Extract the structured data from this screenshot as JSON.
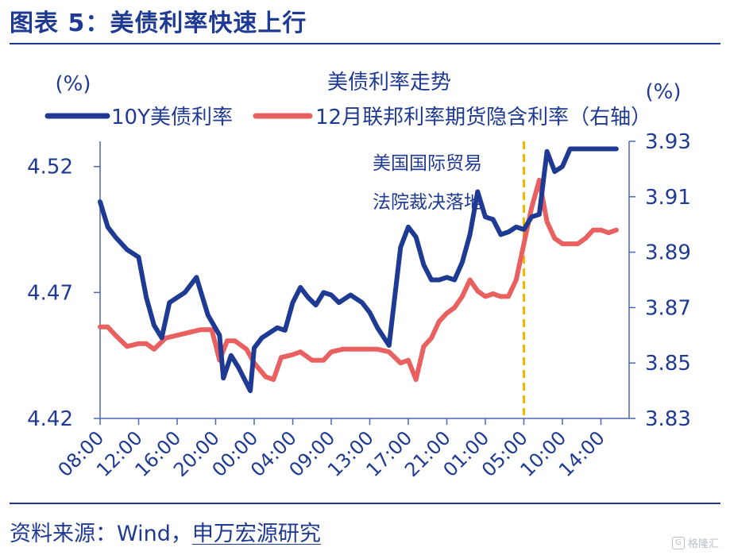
{
  "header": {
    "title": "图表 5：美债利率快速上行"
  },
  "footer": {
    "source_prefix": "资料来源：Wind，",
    "source_org": "申万宏源研究"
  },
  "watermark": {
    "text": "格隆汇",
    "icon": "g-logo-icon"
  },
  "chart_data": {
    "type": "line",
    "title": "美债利率走势",
    "left_unit": "(%)",
    "right_unit": "(%)",
    "annotation": [
      "美国国际贸易",
      "法院裁决落地"
    ],
    "annotation_x": "05:00",
    "categories": [
      "08:00",
      "12:00",
      "16:00",
      "20:00",
      "00:00",
      "04:00",
      "09:00",
      "13:00",
      "17:00",
      "21:00",
      "01:00",
      "05:00",
      "10:00",
      "14:00"
    ],
    "y_left": {
      "min": 4.42,
      "max": 4.53,
      "ticks": [
        "4.52",
        "4.47",
        "4.42"
      ]
    },
    "y_right": {
      "min": 3.83,
      "max": 3.93,
      "ticks": [
        "3.93",
        "3.91",
        "3.89",
        "3.87",
        "3.85",
        "3.83"
      ]
    },
    "series": [
      {
        "name": "10Y美债利率",
        "axis": "left",
        "color": "#1f3a93",
        "x": [
          0.0,
          0.2,
          0.4,
          0.7,
          1.0,
          1.2,
          1.4,
          1.6,
          1.8,
          2.0,
          2.2,
          2.5,
          2.8,
          3.1,
          3.2,
          3.4,
          3.6,
          3.9,
          4.0,
          4.2,
          4.4,
          4.6,
          4.8,
          5.0,
          5.2,
          5.4,
          5.6,
          5.8,
          6.0,
          6.2,
          6.5,
          6.8,
          7.0,
          7.2,
          7.5,
          7.8,
          8.0,
          8.2,
          8.4,
          8.6,
          8.8,
          9.0,
          9.2,
          9.4,
          9.6,
          9.8,
          10.0,
          10.2,
          10.4,
          10.6,
          10.8,
          11.0,
          11.2,
          11.4,
          11.6,
          11.8,
          12.0,
          12.2,
          12.4,
          12.6,
          12.8,
          13.0,
          13.2,
          13.4
        ],
        "values": [
          4.506,
          4.496,
          4.492,
          4.487,
          4.484,
          4.468,
          4.457,
          4.452,
          4.466,
          4.468,
          4.47,
          4.476,
          4.461,
          4.453,
          4.436,
          4.445,
          4.44,
          4.431,
          4.448,
          4.452,
          4.454,
          4.456,
          4.455,
          4.466,
          4.472,
          4.468,
          4.465,
          4.47,
          4.469,
          4.466,
          4.469,
          4.466,
          4.462,
          4.456,
          4.449,
          4.488,
          4.496,
          4.492,
          4.481,
          4.475,
          4.475,
          4.476,
          4.475,
          4.482,
          4.493,
          4.51,
          4.5,
          4.499,
          4.493,
          4.494,
          4.496,
          4.495,
          4.5,
          4.501,
          4.526,
          4.518,
          4.52,
          4.527,
          4.527,
          4.527,
          4.527,
          4.527,
          4.527,
          4.527
        ]
      },
      {
        "name": "12月联邦利率期货隐含利率（右轴）",
        "axis": "right",
        "color": "#e8605f",
        "x": [
          0.0,
          0.2,
          0.4,
          0.7,
          1.0,
          1.2,
          1.4,
          1.7,
          2.0,
          2.3,
          2.6,
          2.9,
          3.1,
          3.3,
          3.5,
          3.8,
          4.0,
          4.3,
          4.5,
          4.7,
          5.0,
          5.2,
          5.5,
          5.8,
          6.0,
          6.3,
          6.6,
          6.9,
          7.2,
          7.5,
          7.8,
          8.0,
          8.2,
          8.4,
          8.6,
          8.8,
          9.0,
          9.2,
          9.4,
          9.6,
          9.8,
          10.0,
          10.2,
          10.4,
          10.6,
          10.8,
          11.0,
          11.2,
          11.4,
          11.6,
          11.8,
          12.0,
          12.2,
          12.4,
          12.6,
          12.8,
          13.0,
          13.2,
          13.4
        ],
        "values": [
          3.863,
          3.863,
          3.86,
          3.856,
          3.857,
          3.857,
          3.855,
          3.859,
          3.86,
          3.861,
          3.862,
          3.862,
          3.851,
          3.858,
          3.858,
          3.855,
          3.85,
          3.845,
          3.844,
          3.852,
          3.853,
          3.854,
          3.851,
          3.851,
          3.854,
          3.855,
          3.855,
          3.855,
          3.855,
          3.854,
          3.85,
          3.851,
          3.844,
          3.856,
          3.859,
          3.865,
          3.868,
          3.87,
          3.874,
          3.88,
          3.876,
          3.874,
          3.875,
          3.874,
          3.874,
          3.88,
          3.893,
          3.906,
          3.916,
          3.901,
          3.895,
          3.893,
          3.893,
          3.893,
          3.895,
          3.898,
          3.898,
          3.897,
          3.898
        ]
      }
    ]
  }
}
